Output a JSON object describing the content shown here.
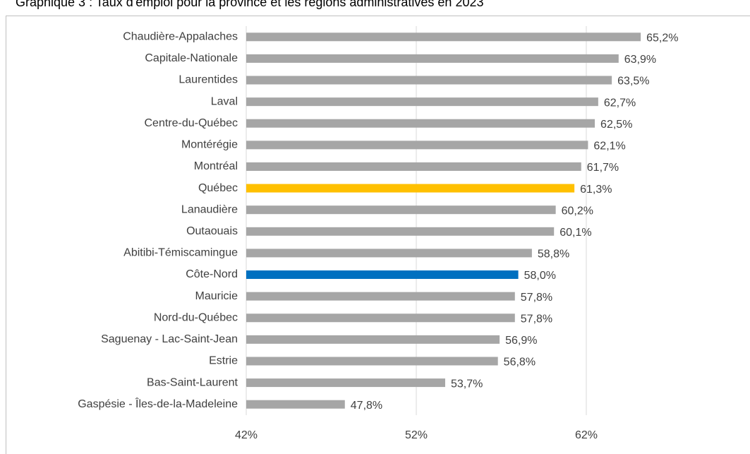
{
  "chart_data": {
    "type": "bar",
    "orientation": "horizontal",
    "title": "Graphique 3 : Taux d'emploi pour la province et les régions administratives en 2023",
    "categories": [
      "Chaudière-Appalaches",
      "Capitale-Nationale",
      "Laurentides",
      "Laval",
      "Centre-du-Québec",
      "Montérégie",
      "Montréal",
      "Québec",
      "Lanaudière",
      "Outaouais",
      "Abitibi-Témiscamingue",
      "Côte-Nord",
      "Mauricie",
      "Nord-du-Québec",
      "Saguenay - Lac-Saint-Jean",
      "Estrie",
      "Bas-Saint-Laurent",
      "Gaspésie - Îles-de-la-Madeleine"
    ],
    "values": [
      65.2,
      63.9,
      63.5,
      62.7,
      62.5,
      62.1,
      61.7,
      61.3,
      60.2,
      60.1,
      58.8,
      58.0,
      57.8,
      57.8,
      56.9,
      56.8,
      53.7,
      47.8
    ],
    "value_labels": [
      "65,2%",
      "63,9%",
      "63,5%",
      "62,7%",
      "62,5%",
      "62,1%",
      "61,7%",
      "61,3%",
      "60,2%",
      "60,1%",
      "58,8%",
      "58,0%",
      "57,8%",
      "57,8%",
      "56,9%",
      "56,8%",
      "53,7%",
      "47,8%"
    ],
    "colors": [
      "#a6a6a6",
      "#a6a6a6",
      "#a6a6a6",
      "#a6a6a6",
      "#a6a6a6",
      "#a6a6a6",
      "#a6a6a6",
      "#ffc000",
      "#a6a6a6",
      "#a6a6a6",
      "#a6a6a6",
      "#0070c0",
      "#a6a6a6",
      "#a6a6a6",
      "#a6a6a6",
      "#a6a6a6",
      "#a6a6a6",
      "#a6a6a6"
    ],
    "xlim": [
      42,
      68
    ],
    "xticks": [
      {
        "value": 42,
        "label": "42%"
      },
      {
        "value": 52,
        "label": "52%"
      },
      {
        "value": 62,
        "label": "62%"
      }
    ],
    "grid": true
  }
}
